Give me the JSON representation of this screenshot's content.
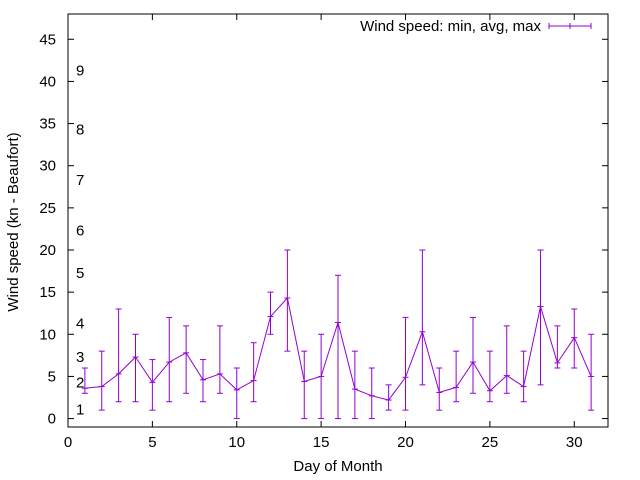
{
  "chart_data": {
    "type": "line",
    "title": "",
    "xlabel": "Day of Month",
    "ylabel": "Wind speed (kn - Beaufort)",
    "xlim": [
      0,
      32
    ],
    "ylim": [
      -1,
      48
    ],
    "x_ticks": [
      0,
      5,
      10,
      15,
      20,
      25,
      30
    ],
    "y_ticks": [
      0,
      5,
      10,
      15,
      20,
      25,
      30,
      35,
      40,
      45
    ],
    "grid": false,
    "legend_position": "top-right",
    "beaufort_labels": [
      {
        "label": "1",
        "value": 1.1
      },
      {
        "label": "2",
        "value": 4.3
      },
      {
        "label": "3",
        "value": 7.3
      },
      {
        "label": "4",
        "value": 11.3
      },
      {
        "label": "5",
        "value": 17.3
      },
      {
        "label": "6",
        "value": 22.3
      },
      {
        "label": "7",
        "value": 28.3
      },
      {
        "label": "8",
        "value": 34.3
      },
      {
        "label": "9",
        "value": 41.3
      }
    ],
    "series": [
      {
        "name": "Wind speed: min, avg, max",
        "color": "#9400d3",
        "x": [
          1,
          2,
          3,
          4,
          5,
          6,
          7,
          8,
          9,
          10,
          11,
          12,
          13,
          14,
          15,
          16,
          17,
          18,
          19,
          20,
          21,
          22,
          23,
          24,
          25,
          26,
          27,
          28,
          29,
          30,
          31
        ],
        "min": [
          3,
          1,
          2,
          2,
          1,
          2,
          3,
          2,
          3,
          0,
          2,
          10,
          8,
          0,
          0,
          0,
          0,
          0,
          1,
          1,
          4,
          1,
          2,
          3,
          2,
          3,
          2,
          4,
          6,
          6,
          1
        ],
        "avg": [
          3.6,
          3.8,
          5.3,
          7.3,
          4.3,
          6.7,
          7.8,
          4.6,
          5.3,
          3.4,
          4.5,
          12.1,
          14.3,
          4.4,
          5.0,
          11.4,
          3.5,
          2.7,
          2.2,
          4.9,
          10.3,
          3.1,
          3.7,
          6.7,
          3.3,
          5.1,
          3.8,
          13.3,
          6.6,
          9.6,
          5.0
        ],
        "max": [
          6,
          8,
          13,
          10,
          7,
          12,
          11,
          7,
          11,
          6,
          9,
          15,
          20,
          8,
          10,
          17,
          8,
          6,
          4,
          12,
          20,
          6,
          8,
          12,
          8,
          11,
          8,
          20,
          11,
          13,
          10
        ]
      }
    ]
  }
}
